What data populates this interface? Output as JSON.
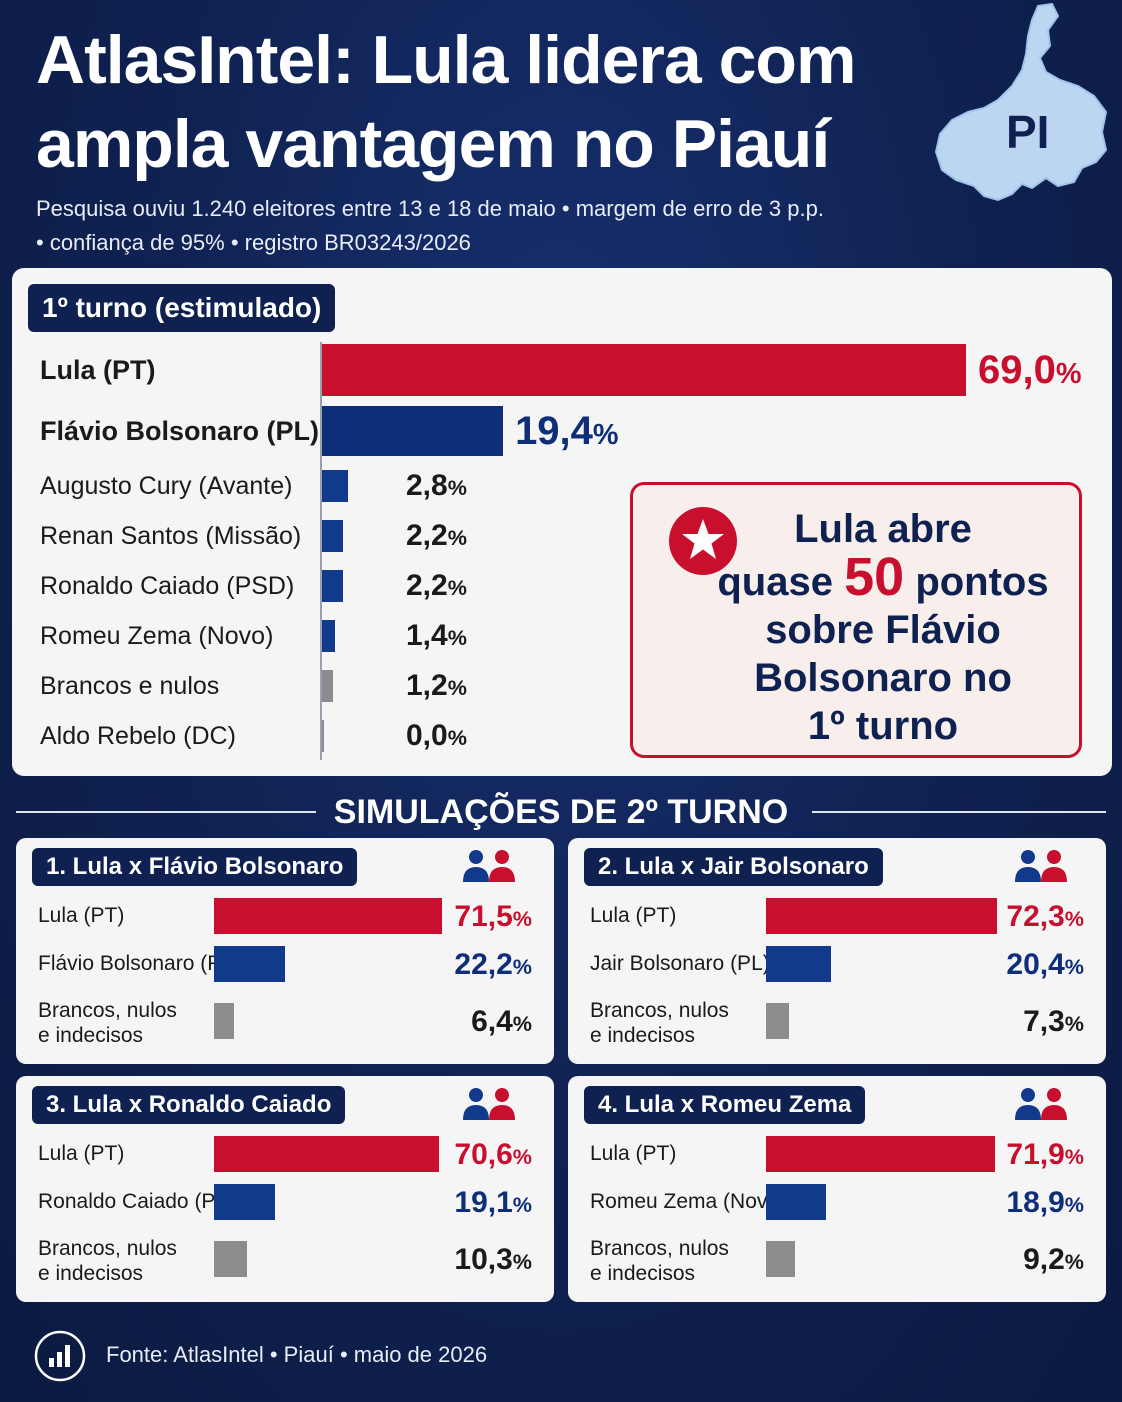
{
  "header": {
    "title_line1": "AtlasIntel: Lula lidera com",
    "title_line2": "ampla vantagem no Piauí",
    "subtitle_line1": "Pesquisa ouviu 1.240 eleitores entre 13 e 18 de maio • margem de erro de 3 p.p.",
    "subtitle_line2": "• confiança de 95% • registro BR03243/2026",
    "map_label": "PI"
  },
  "chart_data": [
    {
      "type": "bar",
      "title": "1º turno (estimulado)",
      "categories": [
        "Lula (PT)",
        "Flávio Bolsonaro (PL)",
        "Augusto Cury (Avante)",
        "Renan Santos (Missão)",
        "Ronaldo Caiado (PSD)",
        "Romeu Zema (Novo)",
        "Brancos e nulos",
        "Aldo Rebelo (DC)"
      ],
      "values": [
        69.0,
        19.4,
        2.8,
        2.2,
        2.2,
        1.4,
        1.2,
        0.0
      ],
      "labels": [
        "69,0",
        "19,4",
        "2,8",
        "2,2",
        "2,2",
        "1,4",
        "1,2",
        "0,0"
      ],
      "unit": "%",
      "colors": [
        "#c8102e",
        "#0f2e7a",
        "#123a8c",
        "#123a8c",
        "#123a8c",
        "#123a8c",
        "#8c8c8e",
        "#8c8c8e"
      ]
    },
    {
      "type": "bar",
      "title": "1. Lula x Flávio Bolsonaro",
      "categories": [
        "Lula (PT)",
        "Flávio Bolsonaro (PL)",
        "Brancos, nulos e indecisos"
      ],
      "values": [
        71.5,
        22.2,
        6.4
      ],
      "labels": [
        "71,5",
        "22,2",
        "6,4"
      ],
      "unit": "%"
    },
    {
      "type": "bar",
      "title": "2. Lula x Jair Bolsonaro",
      "categories": [
        "Lula (PT)",
        "Jair Bolsonaro (PL)",
        "Brancos, nulos e indecisos"
      ],
      "values": [
        72.3,
        20.4,
        7.3
      ],
      "labels": [
        "72,3",
        "20,4",
        "7,3"
      ],
      "unit": "%"
    },
    {
      "type": "bar",
      "title": "3. Lula x Ronaldo Caiado",
      "categories": [
        "Lula (PT)",
        "Ronaldo Caiado (PSD)",
        "Brancos, nulos e indecisos"
      ],
      "values": [
        70.6,
        19.1,
        10.3
      ],
      "labels": [
        "70,6",
        "19,1",
        "10,3"
      ],
      "unit": "%"
    },
    {
      "type": "bar",
      "title": "4. Lula x Romeu Zema",
      "categories": [
        "Lula (PT)",
        "Romeu Zema (Novo)",
        "Brancos, nulos e indecisos"
      ],
      "values": [
        71.9,
        18.9,
        9.2
      ],
      "labels": [
        "71,9",
        "18,9",
        "9,2"
      ],
      "unit": "%"
    }
  ],
  "callout": {
    "line1": "Lula abre",
    "line2_pre": "quase",
    "line2_big": "50",
    "line2_post": "pontos",
    "line3": "sobre Flávio",
    "line4": "Bolsonaro no",
    "line5": "1º turno"
  },
  "second_round_title": "SIMULAÇÕES DE 2º TURNO",
  "sim_name_lines": {
    "blank_line1": "Brancos, nulos",
    "blank_line2": "e indecisos"
  },
  "footer": {
    "text": "Fonte: AtlasIntel  •  Piauí  •  maio de 2026"
  },
  "colors": {
    "background": "#0f2150",
    "lula_red": "#c8102e",
    "opponent_blue": "#123a8c",
    "blank_gray": "#8c8c8e",
    "panel": "#f5f5f6"
  }
}
